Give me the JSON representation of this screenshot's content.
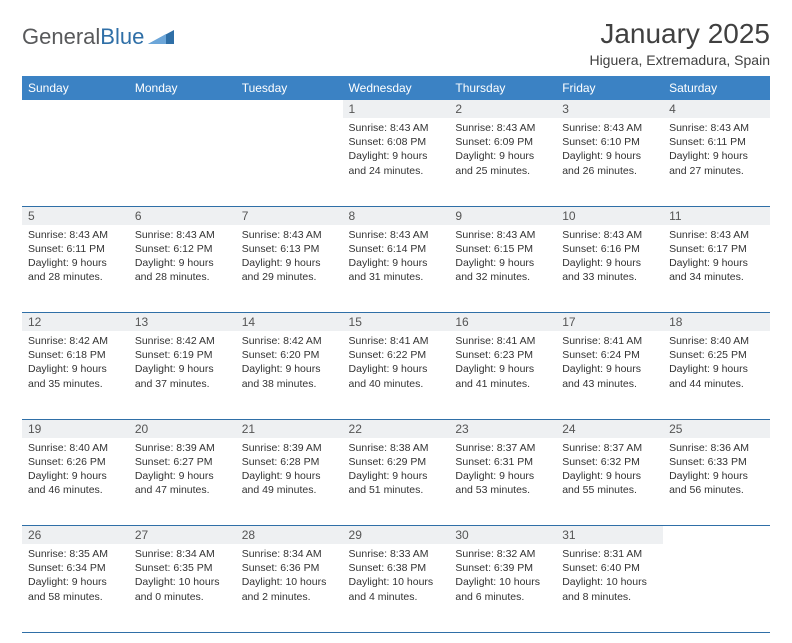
{
  "brand": {
    "name_part1": "General",
    "name_part2": "Blue"
  },
  "title": "January 2025",
  "location": "Higuera, Extremadura, Spain",
  "colors": {
    "header_bg": "#3b82c4",
    "header_text": "#ffffff",
    "daynum_bg": "#eef0f2",
    "border": "#2f6fa7",
    "body_text": "#333333",
    "brand_gray": "#58595b",
    "brand_blue": "#2f6fa7"
  },
  "fonts": {
    "title_size_pt": 21,
    "location_size_pt": 11,
    "header_size_pt": 9,
    "cell_size_pt": 8
  },
  "weekdays": [
    "Sunday",
    "Monday",
    "Tuesday",
    "Wednesday",
    "Thursday",
    "Friday",
    "Saturday"
  ],
  "weeks": [
    {
      "nums": [
        "",
        "",
        "",
        "1",
        "2",
        "3",
        "4"
      ],
      "cells": [
        null,
        null,
        null,
        {
          "sunrise": "Sunrise: 8:43 AM",
          "sunset": "Sunset: 6:08 PM",
          "day1": "Daylight: 9 hours",
          "day2": "and 24 minutes."
        },
        {
          "sunrise": "Sunrise: 8:43 AM",
          "sunset": "Sunset: 6:09 PM",
          "day1": "Daylight: 9 hours",
          "day2": "and 25 minutes."
        },
        {
          "sunrise": "Sunrise: 8:43 AM",
          "sunset": "Sunset: 6:10 PM",
          "day1": "Daylight: 9 hours",
          "day2": "and 26 minutes."
        },
        {
          "sunrise": "Sunrise: 8:43 AM",
          "sunset": "Sunset: 6:11 PM",
          "day1": "Daylight: 9 hours",
          "day2": "and 27 minutes."
        }
      ]
    },
    {
      "nums": [
        "5",
        "6",
        "7",
        "8",
        "9",
        "10",
        "11"
      ],
      "cells": [
        {
          "sunrise": "Sunrise: 8:43 AM",
          "sunset": "Sunset: 6:11 PM",
          "day1": "Daylight: 9 hours",
          "day2": "and 28 minutes."
        },
        {
          "sunrise": "Sunrise: 8:43 AM",
          "sunset": "Sunset: 6:12 PM",
          "day1": "Daylight: 9 hours",
          "day2": "and 28 minutes."
        },
        {
          "sunrise": "Sunrise: 8:43 AM",
          "sunset": "Sunset: 6:13 PM",
          "day1": "Daylight: 9 hours",
          "day2": "and 29 minutes."
        },
        {
          "sunrise": "Sunrise: 8:43 AM",
          "sunset": "Sunset: 6:14 PM",
          "day1": "Daylight: 9 hours",
          "day2": "and 31 minutes."
        },
        {
          "sunrise": "Sunrise: 8:43 AM",
          "sunset": "Sunset: 6:15 PM",
          "day1": "Daylight: 9 hours",
          "day2": "and 32 minutes."
        },
        {
          "sunrise": "Sunrise: 8:43 AM",
          "sunset": "Sunset: 6:16 PM",
          "day1": "Daylight: 9 hours",
          "day2": "and 33 minutes."
        },
        {
          "sunrise": "Sunrise: 8:43 AM",
          "sunset": "Sunset: 6:17 PM",
          "day1": "Daylight: 9 hours",
          "day2": "and 34 minutes."
        }
      ]
    },
    {
      "nums": [
        "12",
        "13",
        "14",
        "15",
        "16",
        "17",
        "18"
      ],
      "cells": [
        {
          "sunrise": "Sunrise: 8:42 AM",
          "sunset": "Sunset: 6:18 PM",
          "day1": "Daylight: 9 hours",
          "day2": "and 35 minutes."
        },
        {
          "sunrise": "Sunrise: 8:42 AM",
          "sunset": "Sunset: 6:19 PM",
          "day1": "Daylight: 9 hours",
          "day2": "and 37 minutes."
        },
        {
          "sunrise": "Sunrise: 8:42 AM",
          "sunset": "Sunset: 6:20 PM",
          "day1": "Daylight: 9 hours",
          "day2": "and 38 minutes."
        },
        {
          "sunrise": "Sunrise: 8:41 AM",
          "sunset": "Sunset: 6:22 PM",
          "day1": "Daylight: 9 hours",
          "day2": "and 40 minutes."
        },
        {
          "sunrise": "Sunrise: 8:41 AM",
          "sunset": "Sunset: 6:23 PM",
          "day1": "Daylight: 9 hours",
          "day2": "and 41 minutes."
        },
        {
          "sunrise": "Sunrise: 8:41 AM",
          "sunset": "Sunset: 6:24 PM",
          "day1": "Daylight: 9 hours",
          "day2": "and 43 minutes."
        },
        {
          "sunrise": "Sunrise: 8:40 AM",
          "sunset": "Sunset: 6:25 PM",
          "day1": "Daylight: 9 hours",
          "day2": "and 44 minutes."
        }
      ]
    },
    {
      "nums": [
        "19",
        "20",
        "21",
        "22",
        "23",
        "24",
        "25"
      ],
      "cells": [
        {
          "sunrise": "Sunrise: 8:40 AM",
          "sunset": "Sunset: 6:26 PM",
          "day1": "Daylight: 9 hours",
          "day2": "and 46 minutes."
        },
        {
          "sunrise": "Sunrise: 8:39 AM",
          "sunset": "Sunset: 6:27 PM",
          "day1": "Daylight: 9 hours",
          "day2": "and 47 minutes."
        },
        {
          "sunrise": "Sunrise: 8:39 AM",
          "sunset": "Sunset: 6:28 PM",
          "day1": "Daylight: 9 hours",
          "day2": "and 49 minutes."
        },
        {
          "sunrise": "Sunrise: 8:38 AM",
          "sunset": "Sunset: 6:29 PM",
          "day1": "Daylight: 9 hours",
          "day2": "and 51 minutes."
        },
        {
          "sunrise": "Sunrise: 8:37 AM",
          "sunset": "Sunset: 6:31 PM",
          "day1": "Daylight: 9 hours",
          "day2": "and 53 minutes."
        },
        {
          "sunrise": "Sunrise: 8:37 AM",
          "sunset": "Sunset: 6:32 PM",
          "day1": "Daylight: 9 hours",
          "day2": "and 55 minutes."
        },
        {
          "sunrise": "Sunrise: 8:36 AM",
          "sunset": "Sunset: 6:33 PM",
          "day1": "Daylight: 9 hours",
          "day2": "and 56 minutes."
        }
      ]
    },
    {
      "nums": [
        "26",
        "27",
        "28",
        "29",
        "30",
        "31",
        ""
      ],
      "cells": [
        {
          "sunrise": "Sunrise: 8:35 AM",
          "sunset": "Sunset: 6:34 PM",
          "day1": "Daylight: 9 hours",
          "day2": "and 58 minutes."
        },
        {
          "sunrise": "Sunrise: 8:34 AM",
          "sunset": "Sunset: 6:35 PM",
          "day1": "Daylight: 10 hours",
          "day2": "and 0 minutes."
        },
        {
          "sunrise": "Sunrise: 8:34 AM",
          "sunset": "Sunset: 6:36 PM",
          "day1": "Daylight: 10 hours",
          "day2": "and 2 minutes."
        },
        {
          "sunrise": "Sunrise: 8:33 AM",
          "sunset": "Sunset: 6:38 PM",
          "day1": "Daylight: 10 hours",
          "day2": "and 4 minutes."
        },
        {
          "sunrise": "Sunrise: 8:32 AM",
          "sunset": "Sunset: 6:39 PM",
          "day1": "Daylight: 10 hours",
          "day2": "and 6 minutes."
        },
        {
          "sunrise": "Sunrise: 8:31 AM",
          "sunset": "Sunset: 6:40 PM",
          "day1": "Daylight: 10 hours",
          "day2": "and 8 minutes."
        },
        null
      ]
    }
  ]
}
